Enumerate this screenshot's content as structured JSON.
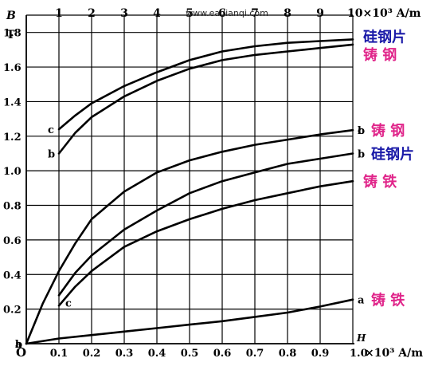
{
  "watermark": "www.eadianqi.com",
  "chart_data": {
    "type": "line",
    "title": "",
    "ylabel_symbol": "B",
    "ylabel_unit": "T",
    "xlabel_symbol": "H",
    "origin_label": "O",
    "ylim": [
      0,
      1.9
    ],
    "y_ticks": [
      "0.2",
      "0.4",
      "0.6",
      "0.8",
      "1.0",
      "1.2",
      "1.4",
      "1.6",
      "1.8"
    ],
    "y_tick_values": [
      0.2,
      0.4,
      0.6,
      0.8,
      1.0,
      1.2,
      1.4,
      1.6,
      1.8
    ],
    "x_bottom": {
      "range": [
        0,
        1.0
      ],
      "ticks": [
        "0.1",
        "0.2",
        "0.3",
        "0.4",
        "0.5",
        "0.6",
        "0.7",
        "0.8",
        "0.9",
        "1.0"
      ],
      "tick_values": [
        0.1,
        0.2,
        0.3,
        0.4,
        0.5,
        0.6,
        0.7,
        0.8,
        0.9,
        1.0
      ],
      "unit": "×10³ A/m"
    },
    "x_top": {
      "range": [
        0,
        10
      ],
      "ticks": [
        "1",
        "2",
        "3",
        "4",
        "5",
        "6",
        "7",
        "8",
        "9"
      ],
      "tick_values": [
        1,
        2,
        3,
        4,
        5,
        6,
        7,
        8,
        9
      ],
      "unit": "10×10³ A/m"
    },
    "grid": true,
    "series": [
      {
        "key": "a",
        "scale": "bottom",
        "label": "铸  铁",
        "label_color": "#e0258a",
        "start_label": "a",
        "x": [
          0,
          0.1,
          0.2,
          0.3,
          0.4,
          0.5,
          0.6,
          0.7,
          0.8,
          0.9,
          1.0
        ],
        "y": [
          0,
          0.03,
          0.05,
          0.07,
          0.09,
          0.11,
          0.13,
          0.155,
          0.18,
          0.215,
          0.255
        ]
      },
      {
        "key": "b",
        "scale": "bottom",
        "label": "铸  钢",
        "label_color": "#e0258a",
        "start_label": "b",
        "x": [
          0,
          0.05,
          0.1,
          0.15,
          0.2,
          0.3,
          0.4,
          0.5,
          0.6,
          0.7,
          0.8,
          0.9,
          1.0
        ],
        "y": [
          0,
          0.23,
          0.42,
          0.58,
          0.72,
          0.88,
          0.99,
          1.06,
          1.11,
          1.15,
          1.18,
          1.21,
          1.235
        ]
      },
      {
        "key": "c",
        "scale": "bottom",
        "label": "硅钢片",
        "label_color": "#1a1aa8",
        "start_label": "c",
        "x": [
          0.1,
          0.15,
          0.2,
          0.3,
          0.4,
          0.5,
          0.6,
          0.7,
          0.8,
          0.9,
          1.0
        ],
        "y": [
          0.28,
          0.41,
          0.51,
          0.66,
          0.77,
          0.87,
          0.94,
          0.99,
          1.04,
          1.07,
          1.1
        ]
      },
      {
        "key": "d",
        "scale": "bottom",
        "label": "铸  铁",
        "label_color": "#e0258a",
        "x": [
          0.1,
          0.15,
          0.2,
          0.3,
          0.4,
          0.5,
          0.6,
          0.7,
          0.8,
          0.9,
          1.0
        ],
        "y": [
          0.22,
          0.33,
          0.42,
          0.56,
          0.65,
          0.72,
          0.78,
          0.83,
          0.87,
          0.91,
          0.94
        ]
      },
      {
        "key": "e",
        "scale": "top",
        "label": "硅钢片",
        "label_color": "#1a1aa8",
        "start_label": "c",
        "x": [
          1,
          1.5,
          2,
          3,
          4,
          5,
          6,
          7,
          8,
          9,
          10
        ],
        "y": [
          1.24,
          1.32,
          1.39,
          1.49,
          1.57,
          1.64,
          1.69,
          1.72,
          1.74,
          1.75,
          1.76
        ]
      },
      {
        "key": "f",
        "scale": "top",
        "label": "铸  钢",
        "label_color": "#e0258a",
        "start_label": "b",
        "x": [
          1,
          1.5,
          2,
          3,
          4,
          5,
          6,
          7,
          8,
          9,
          10
        ],
        "y": [
          1.1,
          1.22,
          1.31,
          1.43,
          1.52,
          1.59,
          1.64,
          1.67,
          1.69,
          1.71,
          1.73
        ]
      }
    ]
  }
}
